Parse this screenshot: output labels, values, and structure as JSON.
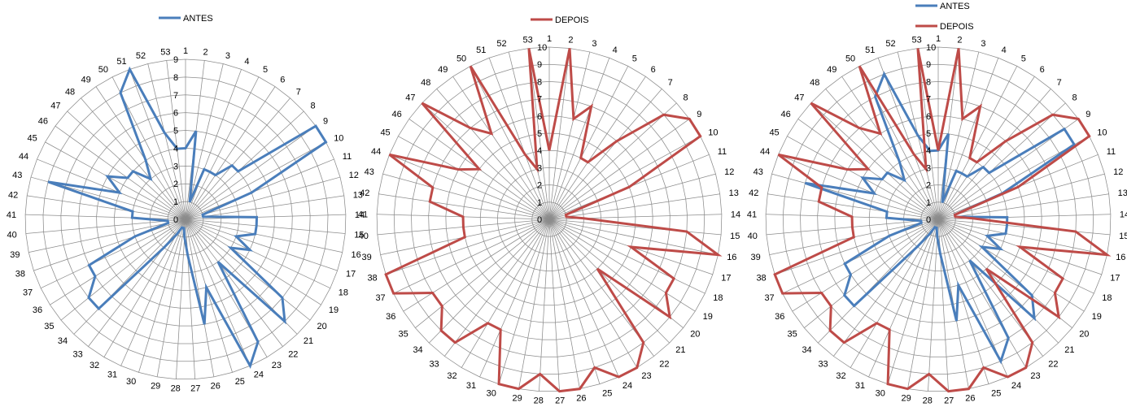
{
  "colors": {
    "antes": "#4A7EBB",
    "depois": "#BE4B48",
    "grid": "#8C8C8C"
  },
  "chart_data": [
    {
      "type": "radar",
      "categories": [
        "1",
        "2",
        "3",
        "4",
        "5",
        "6",
        "7",
        "8",
        "9",
        "10",
        "11",
        "12",
        "13",
        "14",
        "15",
        "16",
        "17",
        "18",
        "19",
        "20",
        "21",
        "22",
        "23",
        "24",
        "25",
        "26",
        "27",
        "28",
        "29",
        "30",
        "31",
        "32",
        "33",
        "34",
        "35",
        "36",
        "37",
        "38",
        "39",
        "40",
        "41",
        "42",
        "43",
        "44",
        "45",
        "46",
        "47",
        "48",
        "49",
        "50",
        "51",
        "52",
        "53"
      ],
      "tick_labels": [
        "0",
        "1",
        "2",
        "3",
        "4",
        "5",
        "6",
        "7",
        "8",
        "9"
      ],
      "rlim": [
        0,
        9
      ],
      "legend_position": "top",
      "series": [
        {
          "name": "ANTES",
          "color": "#4A7EBB",
          "values": [
            4,
            5,
            1,
            3,
            3,
            3,
            4,
            4,
            9,
            9,
            4,
            1,
            1,
            4,
            4,
            4,
            3,
            4,
            3,
            7,
            8,
            3,
            8,
            9,
            4,
            6,
            2,
            1,
            0.5,
            0.5,
            0.5,
            1,
            2,
            7,
            7,
            6,
            6,
            3,
            1,
            1,
            3,
            3,
            8,
            4,
            5,
            4,
            4,
            3,
            4,
            8,
            9,
            5,
            4
          ]
        }
      ]
    },
    {
      "type": "radar",
      "categories": [
        "1",
        "2",
        "3",
        "4",
        "5",
        "6",
        "7",
        "8",
        "9",
        "10",
        "11",
        "12",
        "13",
        "14",
        "15",
        "16",
        "17",
        "18",
        "19",
        "20",
        "21",
        "22",
        "23",
        "24",
        "25",
        "26",
        "27",
        "28",
        "29",
        "30",
        "31",
        "32",
        "33",
        "34",
        "35",
        "36",
        "37",
        "38",
        "39",
        "40",
        "41",
        "42",
        "43",
        "44",
        "45",
        "46",
        "47",
        "48",
        "49",
        "50",
        "51",
        "52",
        "53"
      ],
      "tick_labels": [
        "0",
        "1",
        "2",
        "3",
        "4",
        "5",
        "6",
        "7",
        "8",
        "9",
        "10"
      ],
      "rlim": [
        0,
        10
      ],
      "legend_position": "top",
      "series": [
        {
          "name": "DEPOIS",
          "color": "#BE4B48",
          "values": [
            4,
            10,
            6,
            7,
            4,
            4,
            6,
            9,
            10,
            10,
            5,
            1,
            1,
            2,
            8,
            10,
            5,
            8,
            8,
            9,
            4,
            9,
            10,
            10,
            9,
            10,
            10,
            9,
            10,
            10,
            7,
            7,
            9,
            9,
            8,
            8,
            10,
            10,
            5,
            5,
            5,
            7,
            7,
            10,
            6,
            5,
            10,
            7,
            6,
            10,
            4,
            3,
            10
          ]
        }
      ]
    },
    {
      "type": "radar",
      "categories": [
        "1",
        "2",
        "3",
        "4",
        "5",
        "6",
        "7",
        "8",
        "9",
        "10",
        "11",
        "12",
        "13",
        "14",
        "15",
        "16",
        "17",
        "18",
        "19",
        "20",
        "21",
        "22",
        "23",
        "24",
        "25",
        "26",
        "27",
        "28",
        "29",
        "30",
        "31",
        "32",
        "33",
        "34",
        "35",
        "36",
        "37",
        "38",
        "39",
        "40",
        "41",
        "42",
        "43",
        "44",
        "45",
        "46",
        "47",
        "48",
        "49",
        "50",
        "51",
        "52",
        "53"
      ],
      "tick_labels": [
        "0",
        "1",
        "2",
        "3",
        "4",
        "5",
        "6",
        "7",
        "8",
        "9",
        "10"
      ],
      "rlim": [
        0,
        10
      ],
      "legend_position": "top",
      "series": [
        {
          "name": "ANTES",
          "color": "#4A7EBB",
          "values": [
            4,
            5,
            1,
            3,
            3,
            3,
            4,
            4,
            9,
            9,
            4,
            1,
            1,
            4,
            4,
            4,
            3,
            4,
            3,
            7,
            8,
            3,
            8,
            9,
            4,
            6,
            2,
            1,
            0.5,
            0.5,
            0.5,
            1,
            2,
            7,
            7,
            6,
            6,
            3,
            1,
            1,
            3,
            3,
            8,
            4,
            5,
            4,
            4,
            3,
            4,
            8,
            9,
            5,
            4
          ]
        },
        {
          "name": "DEPOIS",
          "color": "#BE4B48",
          "values": [
            4,
            10,
            6,
            7,
            4,
            4,
            6,
            9,
            10,
            10,
            5,
            1,
            1,
            2,
            8,
            10,
            5,
            8,
            8,
            9,
            4,
            9,
            10,
            10,
            9,
            10,
            10,
            9,
            10,
            10,
            7,
            7,
            9,
            9,
            8,
            8,
            10,
            10,
            5,
            5,
            5,
            7,
            7,
            10,
            6,
            5,
            10,
            7,
            6,
            10,
            4,
            3,
            10
          ]
        }
      ]
    }
  ]
}
